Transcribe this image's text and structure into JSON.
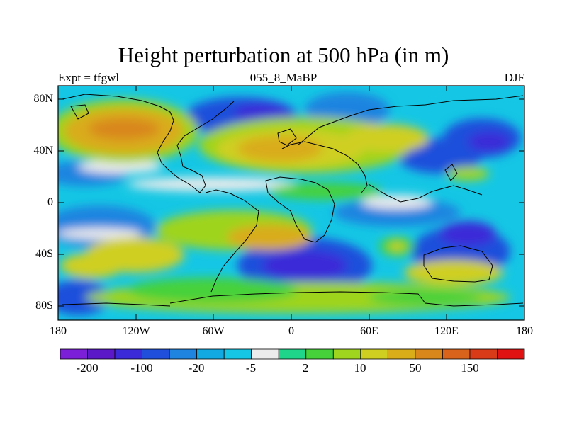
{
  "title": "Height perturbation at 500 hPa (in m)",
  "left_string": "Expt = tfgwl",
  "center_string": "055_8_MaBP",
  "right_string": "DJF",
  "latitude_labels": [
    "80N",
    "40N",
    "0",
    "40S",
    "80S"
  ],
  "longitude_labels": [
    "180",
    "120W",
    "60W",
    "0",
    "60E",
    "120E",
    "180"
  ],
  "colorbar": {
    "colors": [
      "#7b1fd9",
      "#5b18c8",
      "#3a2ad8",
      "#1f4fdb",
      "#1e84e0",
      "#12a9e3",
      "#15c7e4",
      "#ececec",
      "#1fd58a",
      "#46d13a",
      "#9fd41f",
      "#cfcf22",
      "#d9ac1a",
      "#d9871a",
      "#d9631a",
      "#d93a17",
      "#e01212"
    ],
    "labels": [
      "-200",
      "-100",
      "-20",
      "-5",
      "2",
      "10",
      "50",
      "150"
    ]
  }
}
